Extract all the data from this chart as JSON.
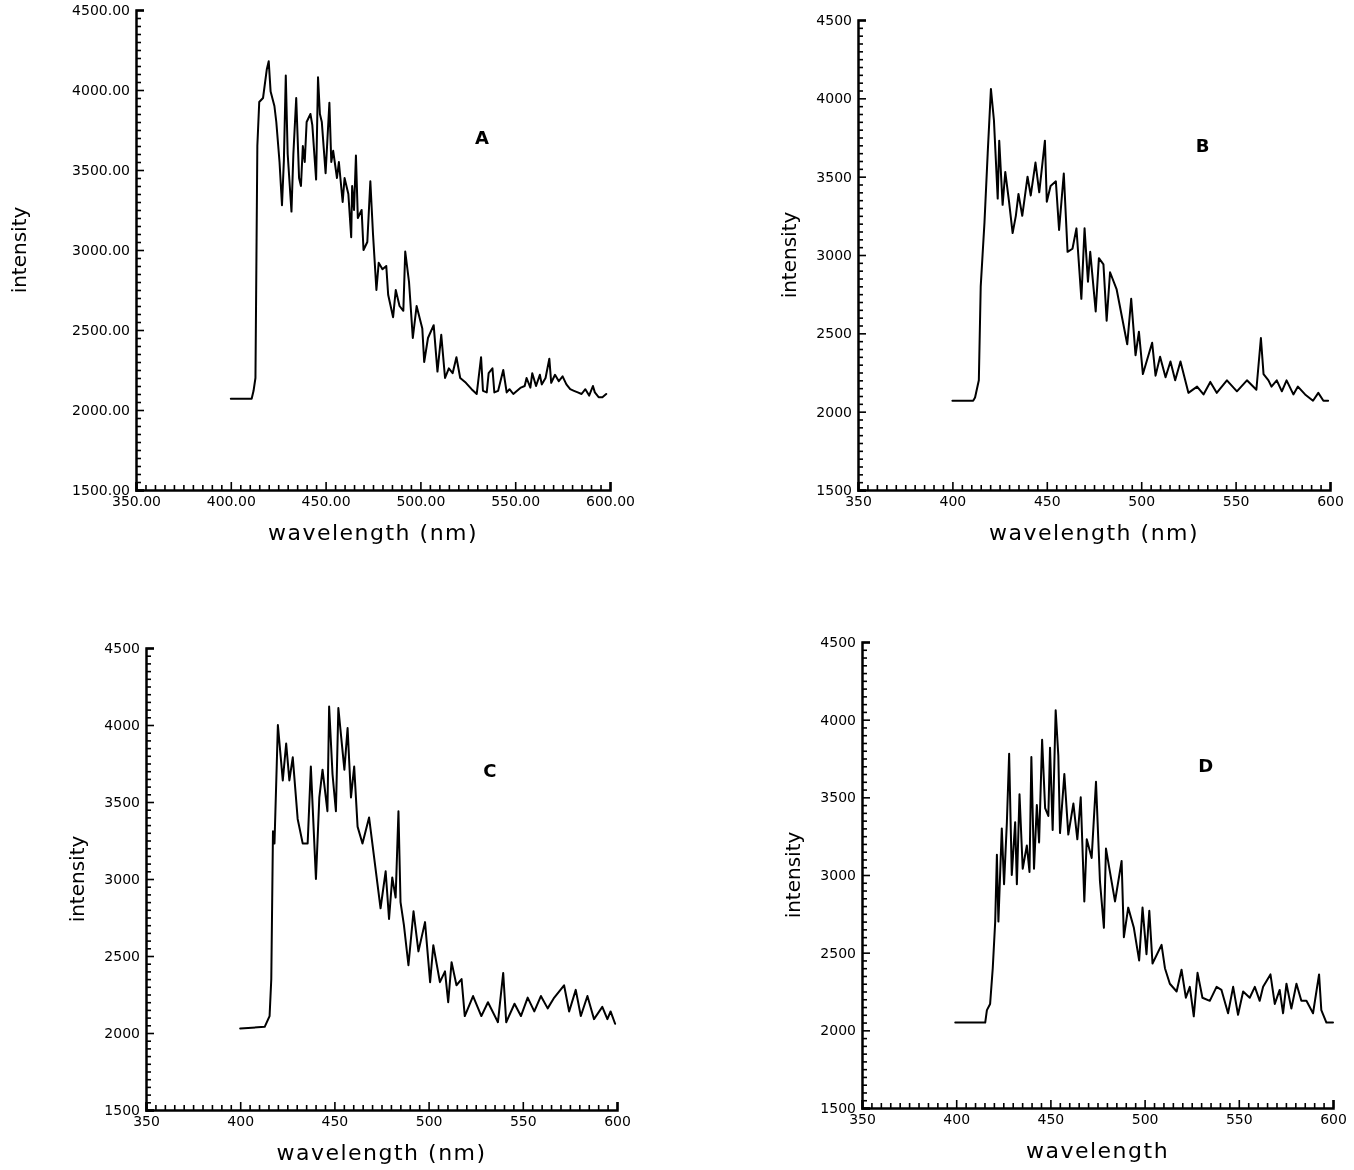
{
  "chart_data": [
    {
      "type": "line",
      "xlabel": "wavelength (nm)",
      "ylabel": "intensity",
      "annotations": [
        "A"
      ],
      "xlim": [
        350,
        600
      ],
      "ylim": [
        1500,
        4500
      ],
      "xticks": [
        {
          "value": 350,
          "label": "350.00"
        },
        {
          "value": 400,
          "label": "400.00"
        },
        {
          "value": 450,
          "label": "450.00"
        },
        {
          "value": 500,
          "label": "500.00"
        },
        {
          "value": 550,
          "label": "550.00"
        },
        {
          "value": 600,
          "label": "600.00"
        }
      ],
      "yticks": [
        {
          "value": 1500,
          "label": "1500.00"
        },
        {
          "value": 2000,
          "label": "2000.00"
        },
        {
          "value": 2500,
          "label": "2500.00"
        },
        {
          "value": 3000,
          "label": "3000.00"
        },
        {
          "value": 3500,
          "label": "3500.00"
        },
        {
          "value": 4000,
          "label": "4000.00"
        },
        {
          "value": 4500,
          "label": "4500.00"
        }
      ],
      "series": [
        {
          "color": "#000000",
          "x": [
            400,
            411,
            412,
            413,
            414,
            415,
            417,
            419,
            420,
            421,
            423,
            424,
            425.7,
            427,
            428,
            429,
            430,
            432,
            433,
            434.5,
            436,
            437,
            438,
            439,
            440,
            442,
            443,
            445,
            446,
            447,
            448,
            450,
            452,
            453,
            454,
            456,
            457,
            459,
            460,
            462,
            463.5,
            464,
            465,
            466,
            467,
            469,
            470,
            472,
            473.6,
            475,
            476.8,
            478,
            480,
            482,
            483,
            485.6,
            487,
            489,
            491,
            492,
            494,
            496,
            498,
            501,
            502,
            504,
            507,
            509,
            511,
            513,
            515,
            517,
            519,
            521,
            524,
            527,
            529.7,
            532,
            533,
            535,
            536,
            538,
            539,
            541,
            543.7,
            545.5,
            547,
            549,
            551,
            553,
            555,
            556,
            558,
            559,
            561,
            563,
            564,
            566,
            568,
            569,
            571,
            573,
            575,
            577,
            579,
            581,
            583,
            585,
            587,
            589,
            591,
            592,
            594,
            596,
            598
          ],
          "values": [
            2070,
            2070,
            2120,
            2200,
            3650,
            3925,
            3950,
            4130,
            4180,
            3990,
            3900,
            3800,
            3550,
            3280,
            3560,
            4090,
            3600,
            3240,
            3600,
            3950,
            3450,
            3400,
            3650,
            3550,
            3800,
            3850,
            3780,
            3440,
            4080,
            3850,
            3800,
            3480,
            3920,
            3550,
            3620,
            3450,
            3550,
            3300,
            3450,
            3350,
            3080,
            3400,
            3250,
            3590,
            3200,
            3250,
            3000,
            3050,
            3430,
            3100,
            2750,
            2920,
            2880,
            2900,
            2720,
            2580,
            2750,
            2650,
            2620,
            2990,
            2800,
            2450,
            2650,
            2510,
            2300,
            2450,
            2530,
            2240,
            2470,
            2200,
            2260,
            2230,
            2330,
            2200,
            2170,
            2130,
            2100,
            2330,
            2120,
            2110,
            2230,
            2260,
            2110,
            2120,
            2250,
            2110,
            2130,
            2100,
            2120,
            2140,
            2150,
            2200,
            2140,
            2230,
            2150,
            2220,
            2160,
            2200,
            2320,
            2170,
            2220,
            2180,
            2210,
            2160,
            2130,
            2120,
            2110,
            2100,
            2130,
            2090,
            2150,
            2110,
            2080,
            2080,
            2100
          ]
        }
      ]
    },
    {
      "type": "line",
      "xlabel": "wavelength (nm)",
      "ylabel": "intensity",
      "annotations": [
        "B"
      ],
      "xlim": [
        350,
        600
      ],
      "ylim": [
        1500,
        4500
      ],
      "xticks": [
        350,
        400,
        450,
        500,
        550,
        600
      ],
      "yticks": [
        1500,
        2000,
        2500,
        3000,
        3500,
        4000,
        4500
      ],
      "series": [
        {
          "color": "#000000",
          "x": [
            400,
            411,
            412,
            414,
            415,
            417,
            418.7,
            420.4,
            422,
            424,
            424.8,
            426.6,
            428,
            430,
            431.9,
            433.6,
            435,
            437,
            439.8,
            441.5,
            444,
            446,
            449,
            450,
            452,
            454.8,
            456.5,
            459,
            461,
            463.6,
            465.7,
            468.3,
            470,
            471.8,
            473,
            475.9,
            477.6,
            480,
            481.7,
            483.5,
            487,
            492.6,
            494.7,
            497,
            498.8,
            500.9,
            505.8,
            507.6,
            510,
            512.9,
            515.5,
            518,
            520.8,
            525,
            529.6,
            533,
            536.6,
            540,
            545.4,
            550.7,
            556,
            561,
            563.4,
            564.8,
            567.4,
            569,
            571.8,
            574.5,
            577,
            580.6,
            583,
            586.8,
            591,
            593.8,
            596.5,
            599
          ],
          "values": [
            2070,
            2070,
            2090,
            2200,
            2800,
            3210,
            3650,
            4060,
            3860,
            3360,
            3730,
            3320,
            3530,
            3340,
            3140,
            3250,
            3390,
            3250,
            3500,
            3380,
            3590,
            3400,
            3730,
            3340,
            3440,
            3470,
            3160,
            3520,
            3020,
            3040,
            3170,
            2720,
            3170,
            2830,
            3020,
            2640,
            2980,
            2940,
            2580,
            2890,
            2780,
            2430,
            2720,
            2360,
            2510,
            2240,
            2440,
            2230,
            2350,
            2220,
            2320,
            2200,
            2320,
            2120,
            2160,
            2110,
            2190,
            2120,
            2200,
            2130,
            2200,
            2140,
            2470,
            2240,
            2200,
            2160,
            2200,
            2130,
            2200,
            2110,
            2160,
            2110,
            2070,
            2120,
            2070,
            2070
          ]
        }
      ]
    },
    {
      "type": "line",
      "xlabel": "wavelength (nm)",
      "ylabel": "intensity",
      "annotations": [
        "C"
      ],
      "xlim": [
        350,
        600
      ],
      "ylim": [
        1500,
        4500
      ],
      "xticks": [
        350,
        400,
        450,
        500,
        550,
        600
      ],
      "yticks": [
        1500,
        2000,
        2500,
        3000,
        3500,
        4000,
        4500
      ],
      "series": [
        {
          "color": "#000000",
          "x": [
            400,
            413,
            415.6,
            416.5,
            417.4,
            418.2,
            420,
            422.6,
            424.4,
            426.1,
            427.9,
            430.5,
            433.2,
            435.8,
            437.5,
            440.2,
            442,
            443.7,
            446.3,
            447.2,
            449,
            450.8,
            452.1,
            455.3,
            457,
            458.8,
            460.5,
            462.3,
            464.9,
            468.4,
            474.5,
            477.2,
            479,
            480.7,
            482.5,
            484,
            485.1,
            486.9,
            489.3,
            492,
            494.6,
            498.1,
            500.8,
            502.5,
            506,
            508.7,
            510.4,
            512.2,
            514.8,
            517.5,
            519.2,
            523.6,
            528,
            531.5,
            536.8,
            539.6,
            541.2,
            545.6,
            549,
            552.6,
            556.1,
            559.6,
            563.2,
            566.7,
            571.9,
            574.6,
            578.1,
            580.8,
            584.3,
            587.8,
            592.2,
            594.9,
            596.6,
            599
          ],
          "values": [
            2030,
            2040,
            2110,
            2350,
            3310,
            3230,
            4000,
            3640,
            3880,
            3640,
            3790,
            3390,
            3230,
            3230,
            3730,
            3000,
            3530,
            3710,
            3440,
            4120,
            3680,
            3440,
            4110,
            3710,
            3980,
            3530,
            3730,
            3340,
            3230,
            3400,
            2810,
            3050,
            2740,
            3010,
            2880,
            3440,
            2850,
            2700,
            2440,
            2790,
            2530,
            2720,
            2330,
            2570,
            2330,
            2400,
            2200,
            2460,
            2310,
            2350,
            2110,
            2240,
            2110,
            2200,
            2070,
            2390,
            2070,
            2190,
            2110,
            2230,
            2140,
            2240,
            2160,
            2230,
            2310,
            2140,
            2280,
            2110,
            2240,
            2090,
            2170,
            2090,
            2140,
            2060
          ]
        }
      ]
    },
    {
      "type": "line",
      "xlabel": "wavelength",
      "ylabel": "intensity",
      "annotations": [
        "D"
      ],
      "xlim": [
        350,
        600
      ],
      "ylim": [
        1500,
        4500
      ],
      "xticks": [
        350,
        400,
        450,
        500,
        550,
        600
      ],
      "yticks": [
        1500,
        2000,
        2500,
        3000,
        3500,
        4000,
        4500
      ],
      "series": [
        {
          "color": "#000000",
          "x": [
            399.5,
            415.4,
            416.3,
            418,
            419.4,
            420.7,
            421.6,
            422.4,
            424.2,
            425.4,
            426.9,
            428.1,
            429.5,
            431.3,
            432.2,
            433.6,
            435.3,
            437.5,
            438.9,
            439.9,
            441.3,
            442.8,
            444,
            445.6,
            447.2,
            448.9,
            449.8,
            451.2,
            452.8,
            454.2,
            455.1,
            457.4,
            459.5,
            462.2,
            464.3,
            466.1,
            468,
            469.3,
            471.9,
            474.2,
            476.3,
            478.4,
            479.5,
            481.6,
            484.3,
            487.8,
            489,
            491.3,
            494.3,
            497.1,
            498.9,
            501,
            502.5,
            504.2,
            509,
            510.8,
            513.4,
            517,
            519.6,
            521.9,
            524,
            526.1,
            528.1,
            530.7,
            534.6,
            538.2,
            540.8,
            544.3,
            547,
            549.6,
            552.3,
            555.8,
            558.5,
            561.1,
            562.9,
            566.8,
            569.1,
            571.7,
            573.5,
            575.3,
            577.9,
            580.6,
            583.2,
            585.9,
            589.4,
            592.6,
            593.8,
            596.5,
            600
          ],
          "values": [
            2050,
            2050,
            2130,
            2170,
            2400,
            2700,
            3130,
            2700,
            3300,
            2940,
            3340,
            3780,
            3000,
            3340,
            2940,
            3520,
            3040,
            3190,
            3020,
            3760,
            3040,
            3450,
            3210,
            3870,
            3430,
            3380,
            3820,
            3290,
            4060,
            3770,
            3270,
            3650,
            3260,
            3460,
            3230,
            3500,
            2830,
            3230,
            3110,
            3600,
            2960,
            2660,
            3170,
            3020,
            2830,
            3090,
            2600,
            2790,
            2660,
            2450,
            2790,
            2490,
            2770,
            2430,
            2550,
            2400,
            2300,
            2250,
            2390,
            2210,
            2280,
            2090,
            2370,
            2210,
            2190,
            2280,
            2260,
            2110,
            2280,
            2100,
            2250,
            2210,
            2280,
            2190,
            2280,
            2360,
            2170,
            2260,
            2110,
            2300,
            2140,
            2300,
            2190,
            2190,
            2110,
            2360,
            2130,
            2050,
            2050
          ]
        }
      ]
    }
  ]
}
